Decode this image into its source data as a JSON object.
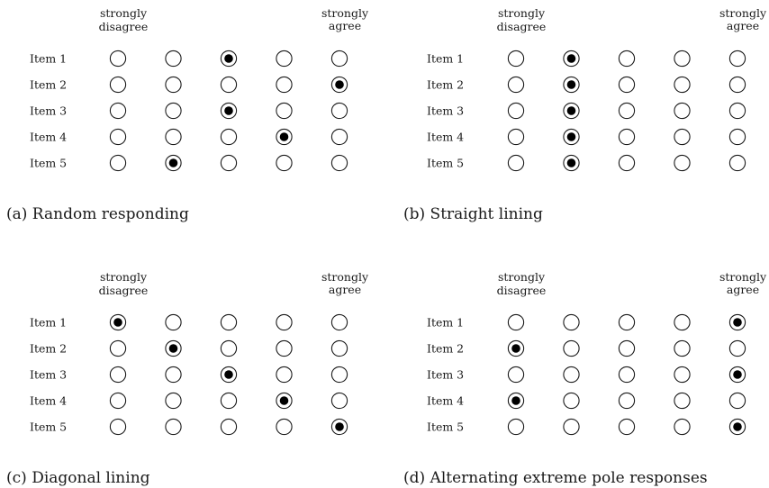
{
  "panels": [
    {
      "id": "a",
      "caption": "(a) Random responding",
      "scale_left": [
        "strongly",
        "disagree"
      ],
      "scale_right": [
        "strongly",
        "agree"
      ],
      "items": [
        {
          "label": "Item 1",
          "selected": 3
        },
        {
          "label": "Item 2",
          "selected": 5
        },
        {
          "label": "Item 3",
          "selected": 3
        },
        {
          "label": "Item 4",
          "selected": 4
        },
        {
          "label": "Item 5",
          "selected": 2
        }
      ]
    },
    {
      "id": "b",
      "caption": "(b) Straight lining",
      "scale_left": [
        "strongly",
        "disagree"
      ],
      "scale_right": [
        "strongly",
        "agree"
      ],
      "items": [
        {
          "label": "Item 1",
          "selected": 2
        },
        {
          "label": "Item 2",
          "selected": 2
        },
        {
          "label": "Item 3",
          "selected": 2
        },
        {
          "label": "Item 4",
          "selected": 2
        },
        {
          "label": "Item 5",
          "selected": 2
        }
      ]
    },
    {
      "id": "c",
      "caption": "(c) Diagonal lining",
      "scale_left": [
        "strongly",
        "disagree"
      ],
      "scale_right": [
        "strongly",
        "agree"
      ],
      "items": [
        {
          "label": "Item 1",
          "selected": 1
        },
        {
          "label": "Item 2",
          "selected": 2
        },
        {
          "label": "Item 3",
          "selected": 3
        },
        {
          "label": "Item 4",
          "selected": 4
        },
        {
          "label": "Item 5",
          "selected": 5
        }
      ]
    },
    {
      "id": "d",
      "caption": "(d) Alternating extreme pole responses",
      "scale_left": [
        "strongly",
        "disagree"
      ],
      "scale_right": [
        "strongly",
        "agree"
      ],
      "items": [
        {
          "label": "Item 1",
          "selected": 5
        },
        {
          "label": "Item 2",
          "selected": 1
        },
        {
          "label": "Item 3",
          "selected": 5
        },
        {
          "label": "Item 4",
          "selected": 1
        },
        {
          "label": "Item 5",
          "selected": 5
        }
      ]
    }
  ]
}
